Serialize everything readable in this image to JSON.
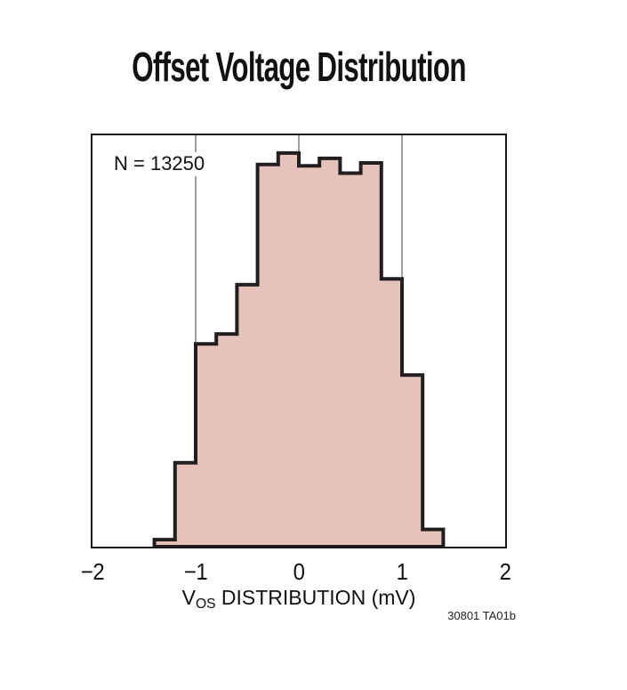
{
  "title": "Offset Voltage Distribution",
  "footnote": "30801 TA01b",
  "chart_data": {
    "type": "histogram",
    "title": "Offset Voltage Distribution",
    "annotation": "N = 13250",
    "sample_count": 13250,
    "xlabel": "VOS DISTRIBUTION (mV)",
    "xlabel_parts": {
      "prefix": "V",
      "sub": "OS",
      "suffix": " DISTRIBUTION (mV)"
    },
    "xlim": [
      -2,
      2
    ],
    "x_tick_values": [
      -2,
      -1,
      0,
      1,
      2
    ],
    "x_tick_labels": [
      "−2",
      "−1",
      "0",
      "1",
      "2"
    ],
    "gridlines_x": [
      -1,
      0,
      1
    ],
    "y_axis_shown": false,
    "ylim_relative": [
      0,
      1
    ],
    "bin_width_mV": 0.2,
    "bin_edges_mV": [
      -1.4,
      -1.2,
      -1.0,
      -0.8,
      -0.6,
      -0.4,
      -0.2,
      0.0,
      0.2,
      0.4,
      0.6,
      0.8,
      1.0,
      1.2,
      1.4
    ],
    "rel_frequency": [
      0.017,
      0.204,
      0.493,
      0.517,
      0.637,
      0.929,
      0.957,
      0.926,
      0.944,
      0.908,
      0.933,
      0.651,
      0.417,
      0.042
    ],
    "colors": {
      "fill": "#e5c3ba",
      "outline": "#221e1f",
      "gridline": "#404040",
      "frame": "#1a1a1a",
      "text": "#111111"
    }
  }
}
